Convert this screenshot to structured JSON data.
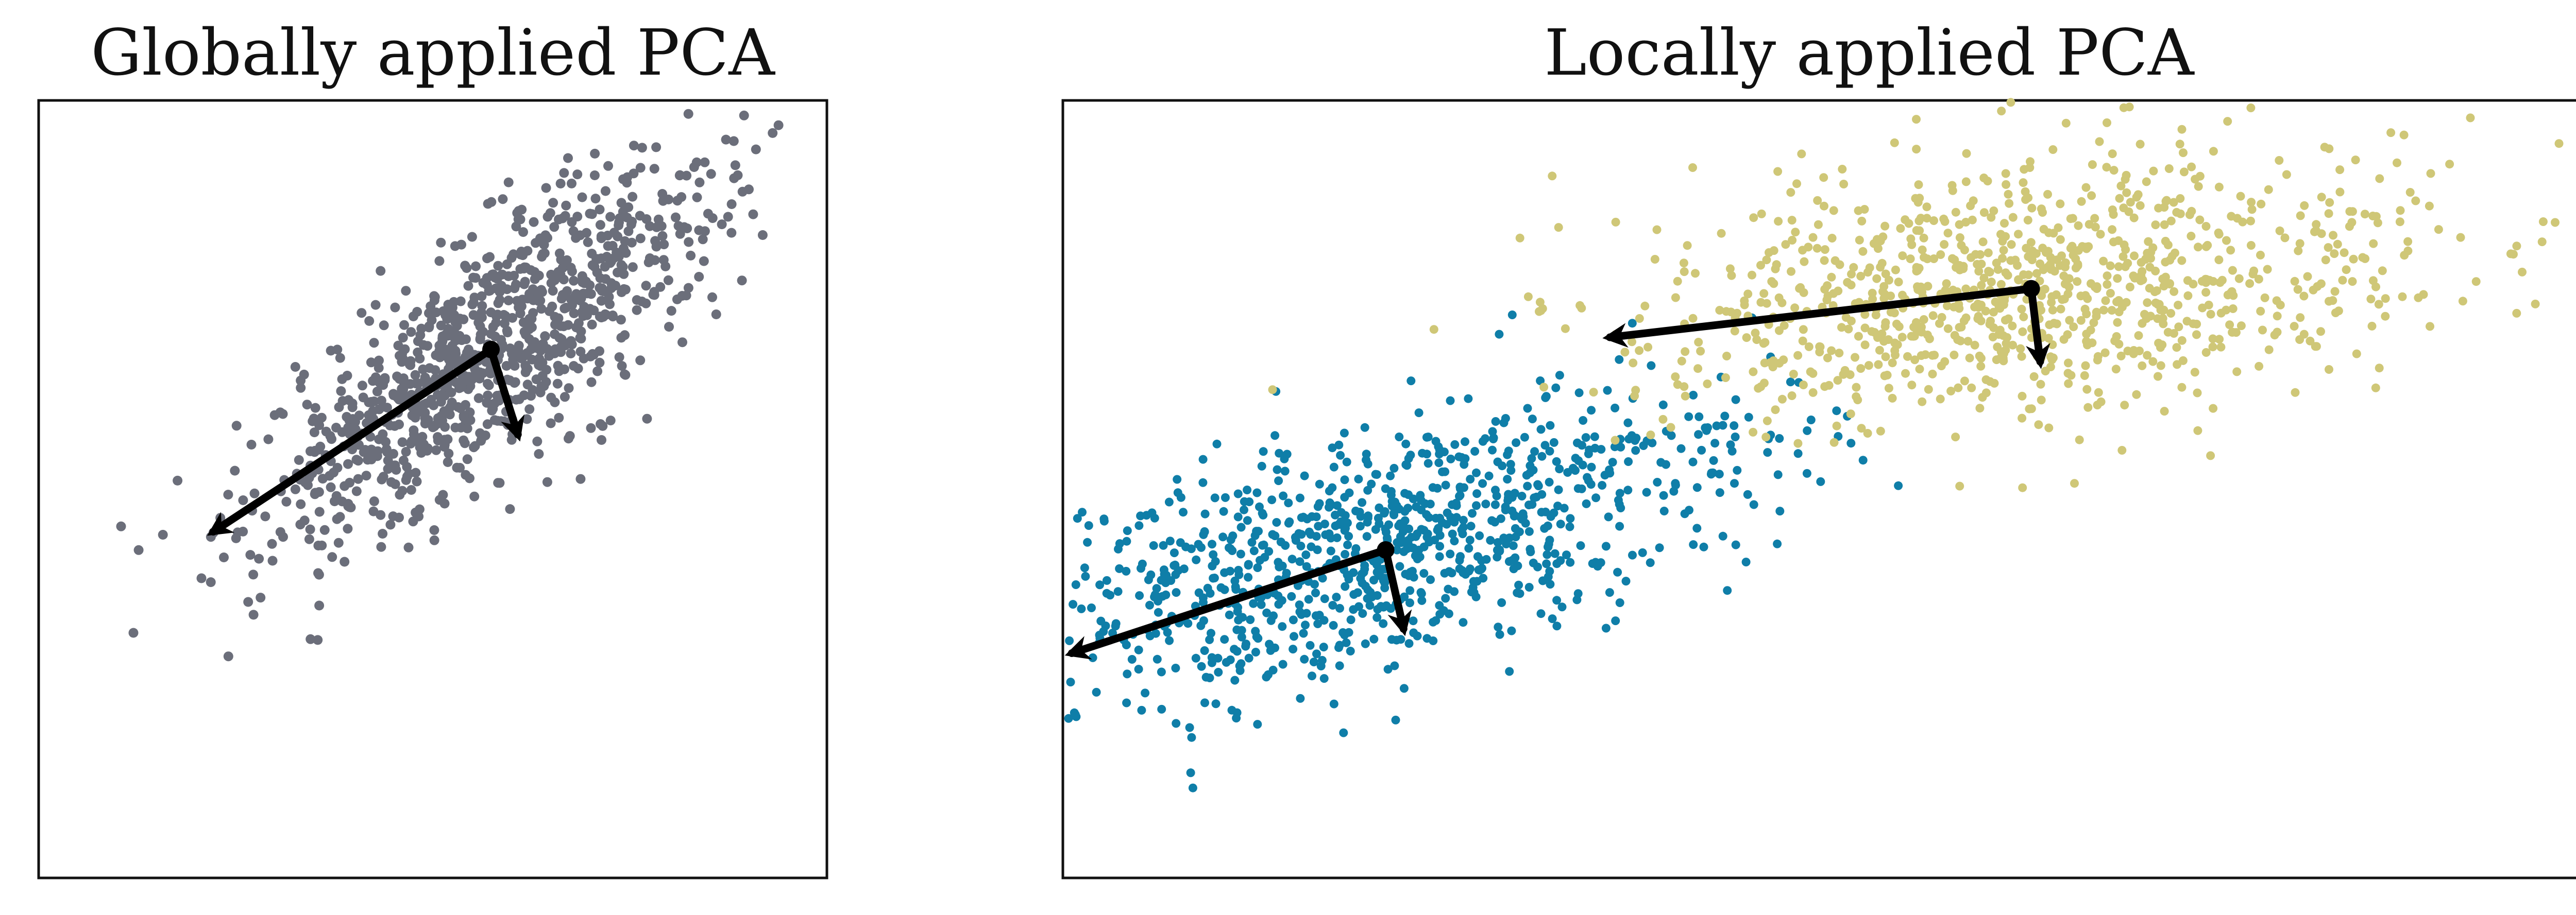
{
  "chart_data": [
    {
      "type": "scatter",
      "title": "Globally applied PCA",
      "xlabel": "",
      "ylabel": "",
      "grid": false,
      "axes_ticks": false,
      "xlim": [
        -4.0,
        4.8
      ],
      "ylim": [
        -3.2,
        3.2
      ],
      "series": [
        {
          "color": "#6b6e7a",
          "n_points": 1000,
          "mean": [
            1.05,
            1.15
          ],
          "principal_axis_angle_deg": 28,
          "spread_major": 1.45,
          "spread_minor": 0.42
        }
      ],
      "pca_arrows": [
        {
          "origin": [
            1.05,
            1.15
          ],
          "tip": [
            -2.05,
            -0.35
          ],
          "component": 1
        },
        {
          "origin": [
            1.05,
            1.15
          ],
          "tip": [
            1.35,
            0.45
          ],
          "component": 2
        }
      ]
    },
    {
      "type": "scatter",
      "title": "Locally applied PCA",
      "xlabel": "",
      "ylabel": "",
      "grid": false,
      "axes_ticks": false,
      "xlim": [
        -4.0,
        4.8
      ],
      "ylim": [
        -3.2,
        3.2
      ],
      "series": [
        {
          "color": "#0f7ea8",
          "n_points": 1000,
          "mean": [
            -2.2,
            -0.5
          ],
          "principal_axis_angle_deg": 25,
          "spread_major": 1.1,
          "spread_minor": 0.45
        },
        {
          "color": "#cfc777",
          "n_points": 1000,
          "mean": [
            1.4,
            1.65
          ],
          "principal_axis_angle_deg": 10,
          "spread_major": 1.15,
          "spread_minor": 0.5
        }
      ],
      "pca_arrows": [
        {
          "origin": [
            -2.2,
            -0.5
          ],
          "tip": [
            -3.95,
            -1.35
          ],
          "component": 1,
          "cluster": 1
        },
        {
          "origin": [
            -2.2,
            -0.5
          ],
          "tip": [
            -2.1,
            -1.15
          ],
          "component": 2,
          "cluster": 1
        },
        {
          "origin": [
            1.4,
            1.65
          ],
          "tip": [
            -0.95,
            1.25
          ],
          "component": 1,
          "cluster": 2
        },
        {
          "origin": [
            1.4,
            1.65
          ],
          "tip": [
            1.45,
            1.05
          ],
          "component": 2,
          "cluster": 2
        }
      ]
    }
  ]
}
